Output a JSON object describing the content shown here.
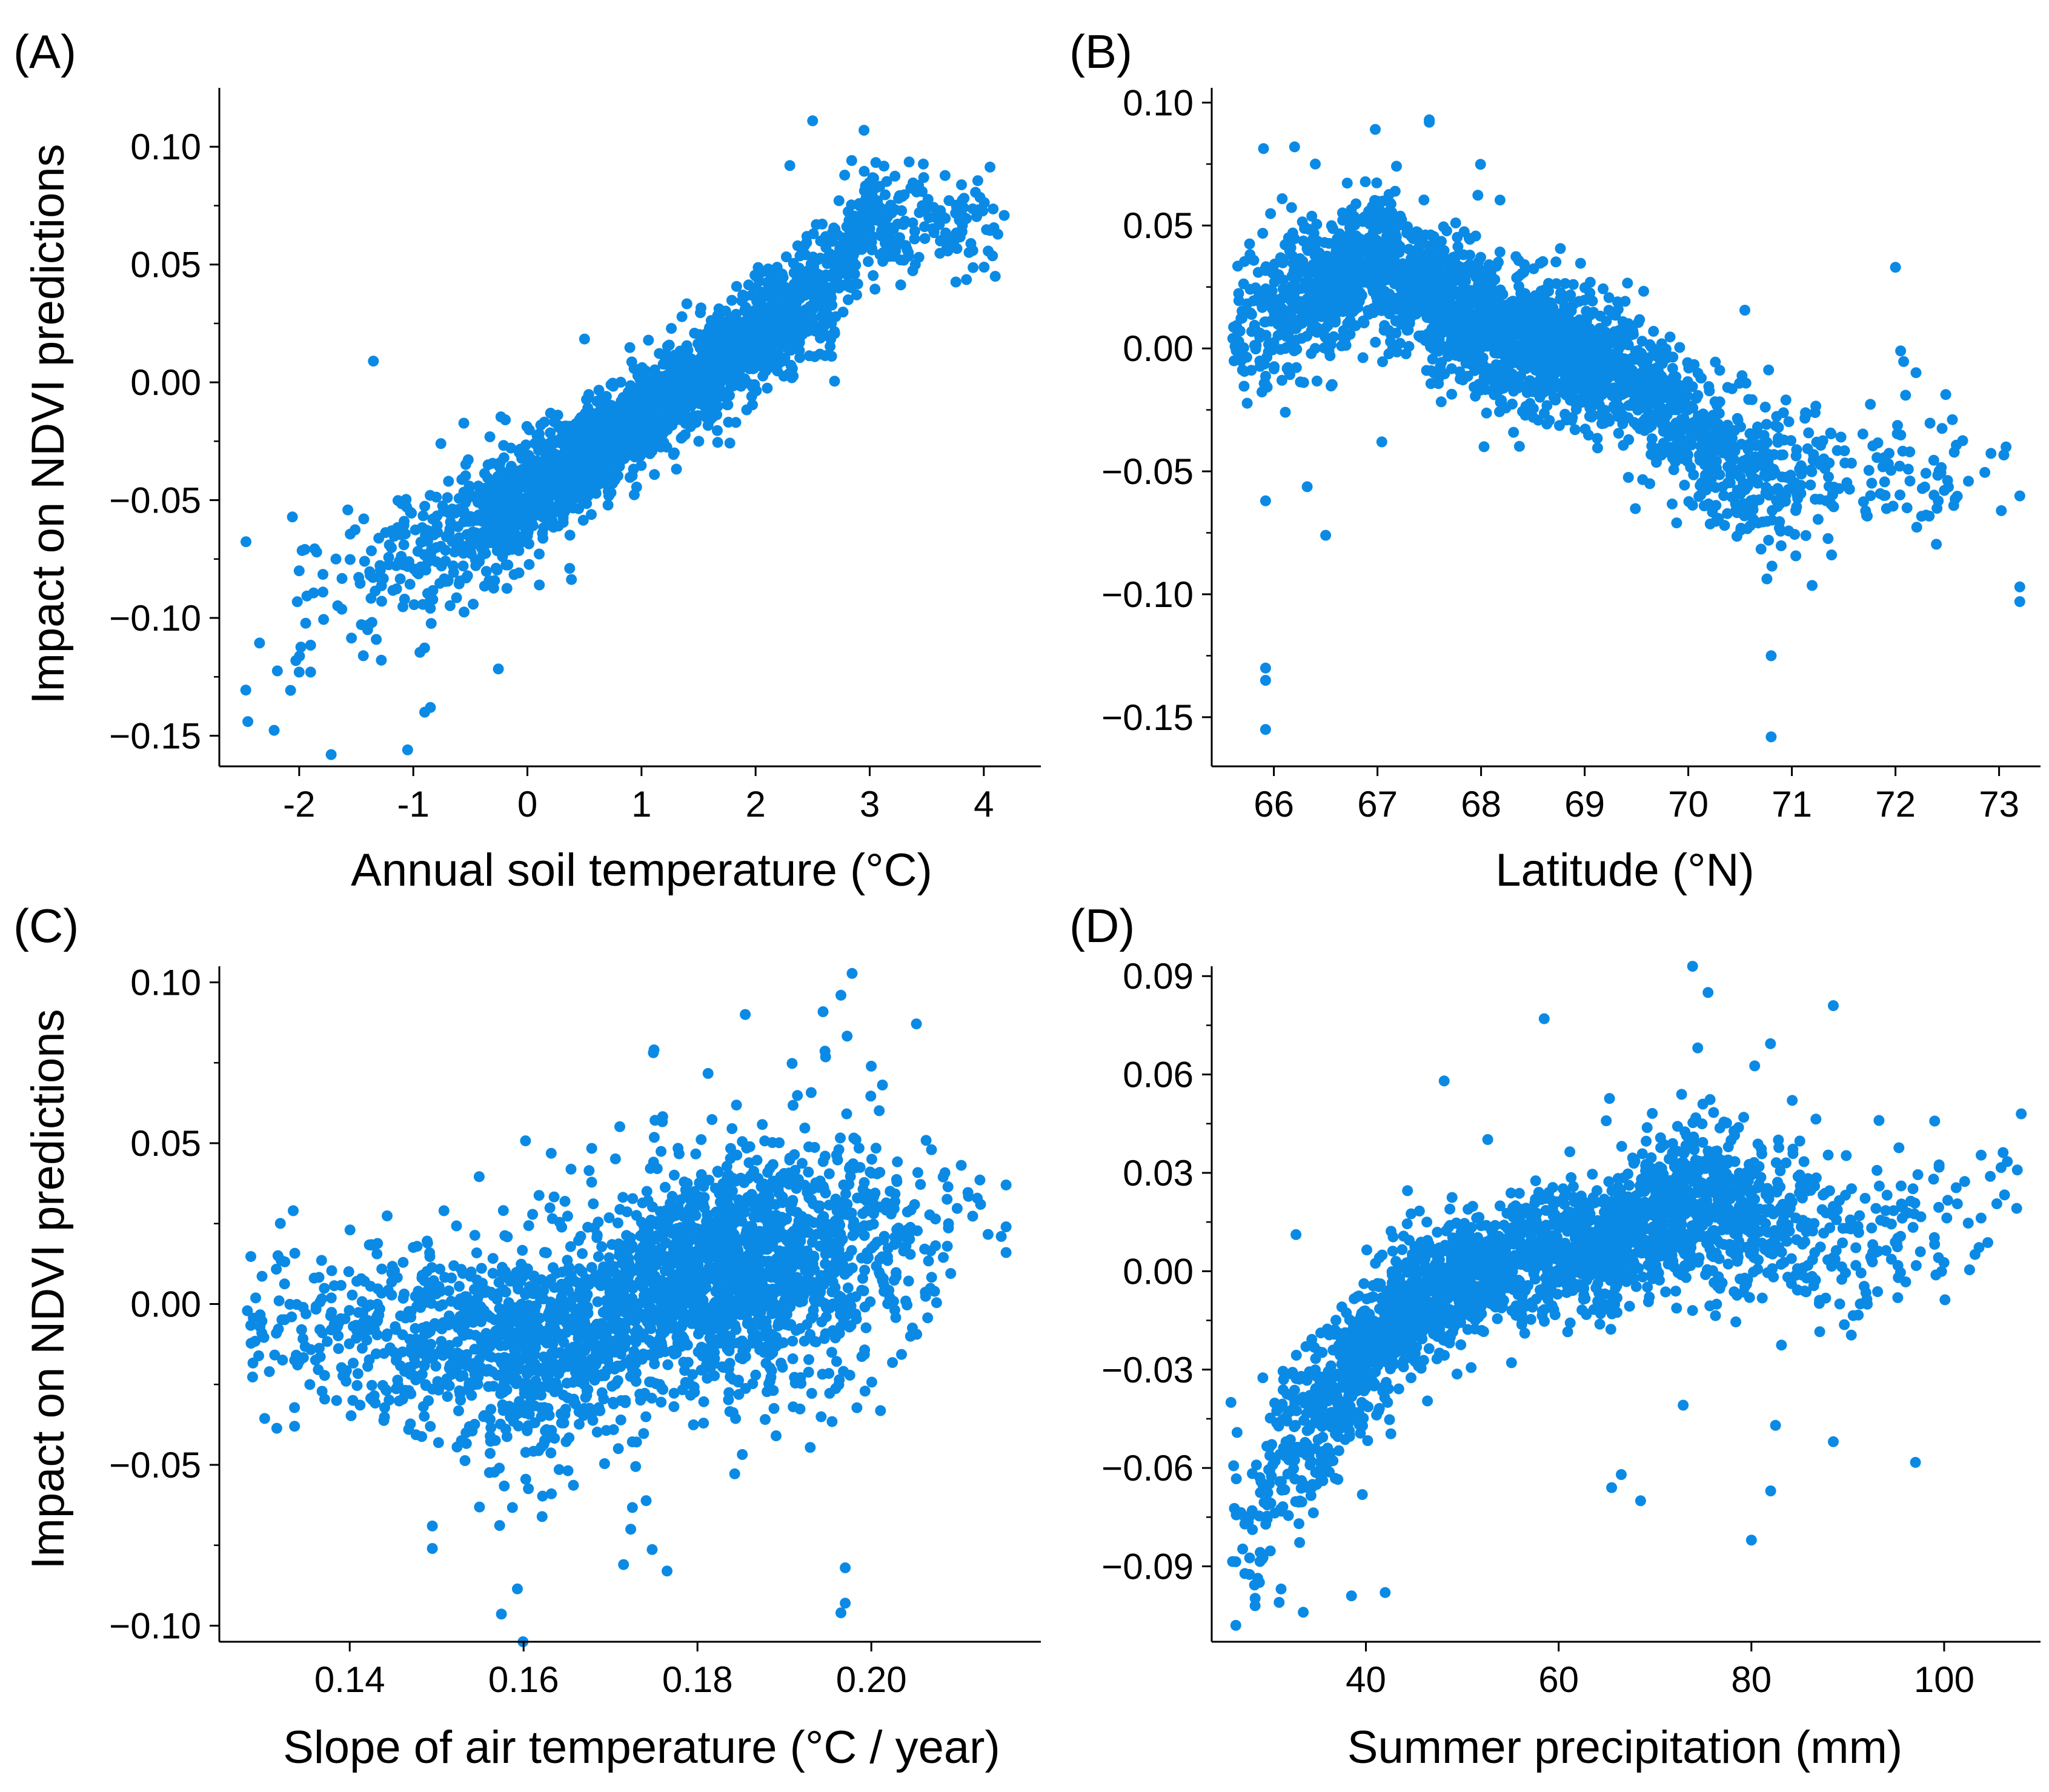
{
  "colors": {
    "points": "#0b8ae5",
    "axes": "#000000",
    "background": "#ffffff"
  },
  "chart_data": [
    {
      "type": "scatter",
      "panel_label": "(A)",
      "xlabel": "Annual soil temperature (°C)",
      "ylabel": "Impact on NDVI predictions",
      "xlim": [
        -2.7,
        4.5
      ],
      "ylim": [
        -0.163,
        0.125
      ],
      "xticks": [
        -2,
        -1,
        0,
        1,
        2,
        3,
        4
      ],
      "xtick_labels": [
        "-2",
        "-1",
        "0",
        "1",
        "2",
        "3",
        "4"
      ],
      "yticks": [
        -0.15,
        -0.1,
        -0.05,
        0.0,
        0.05,
        0.1
      ],
      "ytick_labels": [
        "−0.15",
        "−0.10",
        "−0.05",
        "0.00",
        "0.05",
        "0.10"
      ],
      "yminor": [
        -0.125,
        -0.075,
        -0.025,
        0.025,
        0.075
      ],
      "trend": {
        "kind": "bands",
        "bands": [
          [
            -2.4,
            -0.102,
            0.028
          ],
          [
            -1.2,
            -0.08,
            0.022
          ],
          [
            -0.3,
            -0.058,
            0.016
          ],
          [
            0.5,
            -0.032,
            0.012
          ],
          [
            1.3,
            -0.005,
            0.011
          ],
          [
            2.1,
            0.022,
            0.012
          ],
          [
            2.6,
            0.04,
            0.015
          ],
          [
            3.0,
            0.07,
            0.013
          ],
          [
            4.2,
            0.069,
            0.012
          ]
        ]
      },
      "x_density": [
        [
          -2.5,
          0.02
        ],
        [
          -1.5,
          0.12
        ],
        [
          -0.5,
          0.5
        ],
        [
          0,
          1.3
        ],
        [
          0.5,
          1.6
        ],
        [
          1,
          1.3
        ],
        [
          1.5,
          1.4
        ],
        [
          2,
          1.5
        ],
        [
          2.5,
          1.0
        ],
        [
          3,
          0.4
        ],
        [
          4,
          0.15
        ],
        [
          4.2,
          0.05
        ]
      ],
      "n_points": 2600,
      "outliers": [
        [
          -1.35,
          0.009
        ],
        [
          -1.72,
          -0.158
        ],
        [
          -1.05,
          -0.156
        ],
        [
          -2.45,
          -0.144
        ],
        [
          -2.0,
          -0.123
        ],
        [
          -1.9,
          -0.123
        ],
        [
          -2.0,
          -0.08
        ],
        [
          -1.4,
          -0.105
        ],
        [
          -0.85,
          -0.138
        ],
        [
          -0.9,
          -0.14
        ],
        [
          2.5,
          0.111
        ],
        [
          2.95,
          0.107
        ],
        [
          2.3,
          0.092
        ],
        [
          4.1,
          0.045
        ],
        [
          3.4,
          0.05
        ]
      ]
    },
    {
      "type": "scatter",
      "panel_label": "(B)",
      "xlabel": "Latitude (°N)",
      "ylabel": "",
      "xlim": [
        65.4,
        73.4
      ],
      "ylim": [
        -0.17,
        0.106
      ],
      "xticks": [
        66,
        67,
        68,
        69,
        70,
        71,
        72,
        73
      ],
      "xtick_labels": [
        "66",
        "67",
        "68",
        "69",
        "70",
        "71",
        "72",
        "73"
      ],
      "yticks": [
        -0.15,
        -0.1,
        -0.05,
        0.0,
        0.05,
        0.1
      ],
      "ytick_labels": [
        "−0.15",
        "−0.10",
        "−0.05",
        "0.00",
        "0.05",
        "0.10"
      ],
      "yminor": [
        -0.125,
        -0.075,
        -0.025,
        0.025,
        0.075
      ],
      "trend": {
        "kind": "bands",
        "bands": [
          [
            65.6,
            0.005,
            0.018
          ],
          [
            66.3,
            0.02,
            0.018
          ],
          [
            67.0,
            0.035,
            0.016
          ],
          [
            67.6,
            0.018,
            0.017
          ],
          [
            68.3,
            0.003,
            0.016
          ],
          [
            69.0,
            -0.003,
            0.016
          ],
          [
            69.6,
            -0.015,
            0.015
          ],
          [
            70.0,
            -0.033,
            0.016
          ],
          [
            70.5,
            -0.047,
            0.017
          ],
          [
            71.0,
            -0.052,
            0.017
          ],
          [
            72.0,
            -0.048,
            0.015
          ],
          [
            73.2,
            -0.055,
            0.015
          ]
        ]
      },
      "x_density": [
        [
          65.6,
          0.3
        ],
        [
          66,
          0.7
        ],
        [
          66.5,
          1.0
        ],
        [
          67,
          1.3
        ],
        [
          67.5,
          1.3
        ],
        [
          68,
          1.4
        ],
        [
          68.5,
          1.4
        ],
        [
          69,
          1.2
        ],
        [
          69.5,
          1.0
        ],
        [
          70,
          0.7
        ],
        [
          70.5,
          0.6
        ],
        [
          71,
          0.4
        ],
        [
          71.5,
          0.15
        ],
        [
          72,
          0.12
        ],
        [
          72.5,
          0.1
        ],
        [
          73,
          0.04
        ],
        [
          73.2,
          0.02
        ]
      ],
      "n_points": 2600,
      "outliers": [
        [
          65.92,
          -0.155
        ],
        [
          65.92,
          -0.135
        ],
        [
          65.92,
          -0.13
        ],
        [
          65.92,
          -0.062
        ],
        [
          66.5,
          -0.076
        ],
        [
          67.5,
          0.092
        ],
        [
          67.5,
          0.093
        ],
        [
          70.8,
          -0.158
        ],
        [
          70.8,
          -0.125
        ],
        [
          73.2,
          -0.097
        ],
        [
          73.2,
          -0.103
        ],
        [
          73.2,
          -0.06
        ],
        [
          72.0,
          0.033
        ],
        [
          72.05,
          -0.001
        ],
        [
          66.2,
          0.082
        ],
        [
          66.4,
          0.075
        ]
      ]
    },
    {
      "type": "scatter",
      "panel_label": "(C)",
      "xlabel": "Slope of air temperature (°C / year)",
      "ylabel": "Impact on NDVI predictions",
      "xlim": [
        0.125,
        0.2195
      ],
      "ylim": [
        -0.105,
        0.105
      ],
      "xticks": [
        0.14,
        0.16,
        0.18,
        0.2
      ],
      "xtick_labels": [
        "0.14",
        "0.16",
        "0.18",
        "0.20"
      ],
      "yticks": [
        -0.1,
        -0.05,
        0.0,
        0.05,
        0.1
      ],
      "ytick_labels": [
        "−0.10",
        "−0.05",
        "0.00",
        "0.05",
        "0.10"
      ],
      "yminor": [
        -0.075,
        -0.025,
        0.025,
        0.075
      ],
      "trend": {
        "kind": "bands",
        "bands": [
          [
            0.128,
            -0.008,
            0.013
          ],
          [
            0.15,
            -0.01,
            0.016
          ],
          [
            0.162,
            -0.015,
            0.02
          ],
          [
            0.17,
            -0.004,
            0.02
          ],
          [
            0.18,
            0.012,
            0.02
          ],
          [
            0.19,
            0.012,
            0.02
          ],
          [
            0.2,
            0.02,
            0.025
          ],
          [
            0.216,
            0.025,
            0.012
          ]
        ]
      },
      "x_density": [
        [
          0.128,
          0.15
        ],
        [
          0.14,
          0.3
        ],
        [
          0.15,
          0.6
        ],
        [
          0.16,
          1.0
        ],
        [
          0.165,
          1.1
        ],
        [
          0.17,
          1.0
        ],
        [
          0.175,
          1.3
        ],
        [
          0.18,
          1.6
        ],
        [
          0.185,
          1.7
        ],
        [
          0.19,
          1.4
        ],
        [
          0.195,
          1.0
        ],
        [
          0.2,
          0.5
        ],
        [
          0.205,
          0.2
        ],
        [
          0.21,
          0.08
        ],
        [
          0.216,
          0.04
        ]
      ],
      "n_points": 2600,
      "outliers": [
        [
          0.1855,
          0.09
        ],
        [
          0.1965,
          0.096
        ],
        [
          0.175,
          0.079
        ],
        [
          0.1965,
          -0.096
        ],
        [
          0.197,
          -0.093
        ],
        [
          0.197,
          -0.082
        ],
        [
          0.1765,
          -0.083
        ],
        [
          0.1715,
          -0.081
        ],
        [
          0.1495,
          -0.076
        ],
        [
          0.1495,
          -0.069
        ],
        [
          0.1335,
          0.029
        ],
        [
          0.2155,
          0.037
        ],
        [
          0.2155,
          0.016
        ],
        [
          0.2155,
          0.024
        ]
      ]
    },
    {
      "type": "scatter",
      "panel_label": "(D)",
      "xlabel": "Summer precipitation (mm)",
      "ylabel": "",
      "xlim": [
        24,
        110
      ],
      "ylim": [
        -0.113,
        0.093
      ],
      "xticks": [
        40,
        60,
        80,
        100
      ],
      "xtick_labels": [
        "40",
        "60",
        "80",
        "100"
      ],
      "yticks": [
        -0.09,
        -0.06,
        -0.03,
        0.0,
        0.03,
        0.06,
        0.09
      ],
      "ytick_labels": [
        "−0.09",
        "−0.06",
        "−0.03",
        "0.00",
        "0.03",
        "0.06",
        "0.09"
      ],
      "yminor": [
        -0.075,
        -0.045,
        -0.015,
        0.015,
        0.045,
        0.075
      ],
      "trend": {
        "kind": "bands",
        "bands": [
          [
            26,
            -0.082,
            0.016
          ],
          [
            32,
            -0.055,
            0.015
          ],
          [
            38,
            -0.033,
            0.014
          ],
          [
            44,
            -0.013,
            0.012
          ],
          [
            50,
            0.0,
            0.01
          ],
          [
            58,
            0.005,
            0.01
          ],
          [
            66,
            0.008,
            0.011
          ],
          [
            72,
            0.02,
            0.014
          ],
          [
            80,
            0.018,
            0.015
          ],
          [
            90,
            0.012,
            0.016
          ],
          [
            100,
            0.01,
            0.017
          ],
          [
            108,
            0.025,
            0.015
          ]
        ]
      },
      "x_density": [
        [
          26,
          0.1
        ],
        [
          30,
          0.4
        ],
        [
          35,
          0.9
        ],
        [
          40,
          1.3
        ],
        [
          45,
          1.3
        ],
        [
          50,
          1.2
        ],
        [
          55,
          1.1
        ],
        [
          60,
          1.1
        ],
        [
          65,
          1.1
        ],
        [
          70,
          1.2
        ],
        [
          75,
          1.1
        ],
        [
          80,
          0.7
        ],
        [
          85,
          0.4
        ],
        [
          90,
          0.25
        ],
        [
          95,
          0.18
        ],
        [
          100,
          0.12
        ],
        [
          105,
          0.06
        ],
        [
          108,
          0.03
        ]
      ],
      "n_points": 2600,
      "outliers": [
        [
          26.5,
          -0.108
        ],
        [
          28.5,
          -0.102
        ],
        [
          31,
          -0.101
        ],
        [
          33.5,
          -0.104
        ],
        [
          38.5,
          -0.099
        ],
        [
          42,
          -0.098
        ],
        [
          80,
          -0.082
        ],
        [
          88.5,
          -0.052
        ],
        [
          82.5,
          -0.047
        ],
        [
          82,
          -0.067
        ],
        [
          65.5,
          -0.066
        ],
        [
          66.5,
          -0.062
        ],
        [
          68.5,
          -0.07
        ],
        [
          58.5,
          0.077
        ],
        [
          75.5,
          0.085
        ],
        [
          88.5,
          0.081
        ],
        [
          108,
          0.048
        ],
        [
          26,
          -0.04
        ]
      ]
    }
  ]
}
